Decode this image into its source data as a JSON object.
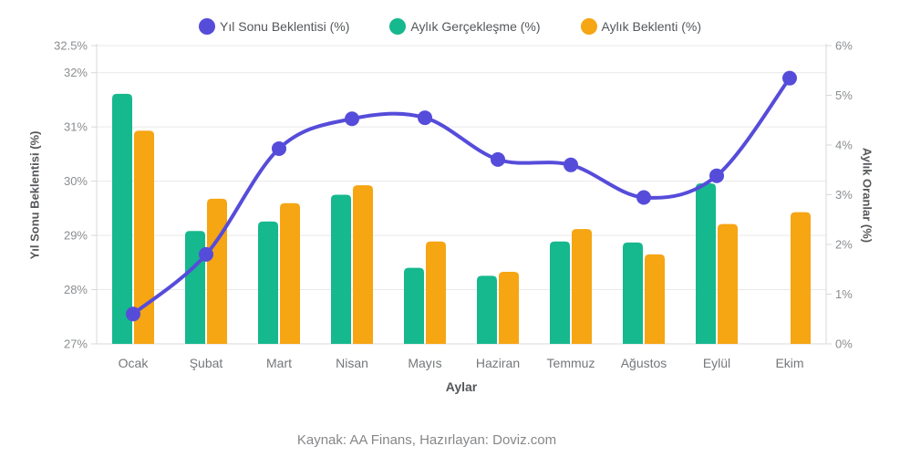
{
  "chart_data": {
    "type": "mixed-bar-line",
    "categories": [
      "Ocak",
      "Şubat",
      "Mart",
      "Nisan",
      "Mayıs",
      "Haziran",
      "Temmuz",
      "Ağustos",
      "Eylül",
      "Ekim"
    ],
    "series": [
      {
        "key": "yil-sonu-beklentisi",
        "name": "Yıl Sonu Beklentisi (%)",
        "type": "line",
        "axis": "left",
        "color": "#564cda",
        "values": [
          27.55,
          28.65,
          30.6,
          31.15,
          31.17,
          30.4,
          30.3,
          29.7,
          30.1,
          31.9
        ]
      },
      {
        "key": "aylik-gerceklesme",
        "name": "Aylık Gerçekleşme (%)",
        "type": "bar",
        "axis": "right",
        "color": "#16b88e",
        "values": [
          5.03,
          2.27,
          2.46,
          3.0,
          1.53,
          1.37,
          2.06,
          2.04,
          3.23,
          null
        ]
      },
      {
        "key": "aylik-beklenti",
        "name": "Aylık Beklenti (%)",
        "type": "bar",
        "axis": "right",
        "color": "#f6a513",
        "values": [
          4.29,
          2.92,
          2.83,
          3.19,
          2.06,
          1.45,
          2.31,
          1.8,
          2.41,
          2.65
        ]
      }
    ],
    "left_axis": {
      "title": "Yıl Sonu Beklentisi (%)",
      "min": 27,
      "max": 32.5,
      "ticks": [
        {
          "label": "32.5%",
          "value": 32.5
        },
        {
          "label": "32%",
          "value": 32
        },
        {
          "label": "31%",
          "value": 31
        },
        {
          "label": "30%",
          "value": 30
        },
        {
          "label": "29%",
          "value": 29
        },
        {
          "label": "28%",
          "value": 28
        },
        {
          "label": "27%",
          "value": 27
        }
      ]
    },
    "right_axis": {
      "title": "Aylık Oranlar (%)",
      "min": 0,
      "max": 6,
      "ticks": [
        {
          "label": "6%",
          "value": 6
        },
        {
          "label": "5%",
          "value": 5
        },
        {
          "label": "4%",
          "value": 4
        },
        {
          "label": "3%",
          "value": 3
        },
        {
          "label": "2%",
          "value": 2
        },
        {
          "label": "1%",
          "value": 1
        },
        {
          "label": "0%",
          "value": 0
        }
      ]
    },
    "xlabel": "Aylar",
    "caption": "Kaynak: AA Finans, Hazırlayan: Doviz.com",
    "legend_position": "top",
    "grid": true
  },
  "colors": {
    "grid": "#e9e9e9",
    "axis_line": "#d9d9d9",
    "tick_text": "#8a8d90",
    "month_text": "#75777a",
    "legend_text": "#55575a",
    "caption_text": "#85878a"
  }
}
